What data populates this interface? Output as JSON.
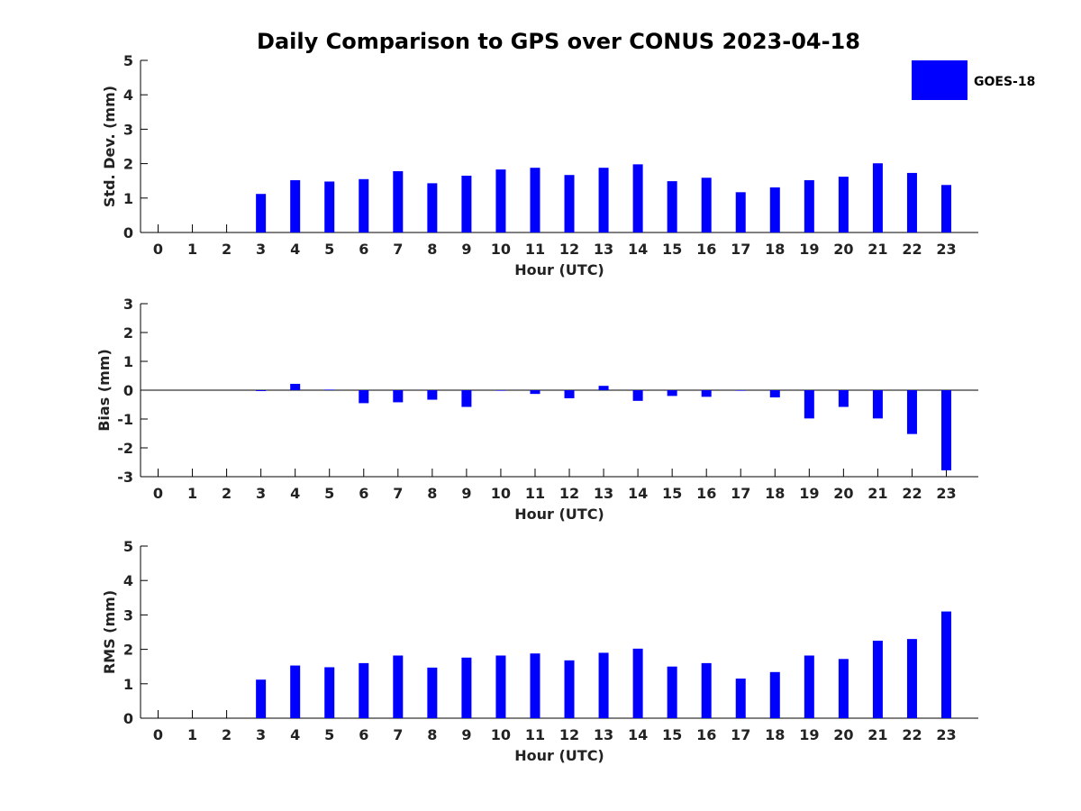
{
  "title": "Daily Comparison to GPS over CONUS 2023-04-18",
  "legend": {
    "label": "GOES-18",
    "color": "#0000ff",
    "placement": "top-right"
  },
  "chart_data": [
    {
      "type": "bar",
      "xlabel": "Hour (UTC)",
      "ylabel": "Std. Dev. (mm)",
      "ylim": [
        0,
        5
      ],
      "yticks": [
        0,
        1,
        2,
        3,
        4,
        5
      ],
      "categories": [
        "0",
        "1",
        "2",
        "3",
        "4",
        "5",
        "6",
        "7",
        "8",
        "9",
        "10",
        "11",
        "12",
        "13",
        "14",
        "15",
        "16",
        "17",
        "18",
        "19",
        "20",
        "21",
        "22",
        "23"
      ],
      "series": [
        {
          "name": "GOES-18",
          "values": [
            0,
            0,
            0,
            1.12,
            1.52,
            1.48,
            1.55,
            1.78,
            1.43,
            1.65,
            1.83,
            1.88,
            1.67,
            1.88,
            1.98,
            1.49,
            1.59,
            1.17,
            1.31,
            1.52,
            1.62,
            2.01,
            1.73,
            1.38
          ]
        }
      ]
    },
    {
      "type": "bar",
      "xlabel": "Hour (UTC)",
      "ylabel": "Bias (mm)",
      "ylim": [
        -3,
        3
      ],
      "yticks": [
        -3,
        -2,
        -1,
        0,
        1,
        2,
        3
      ],
      "categories": [
        "0",
        "1",
        "2",
        "3",
        "4",
        "5",
        "6",
        "7",
        "8",
        "9",
        "10",
        "11",
        "12",
        "13",
        "14",
        "15",
        "16",
        "17",
        "18",
        "19",
        "20",
        "21",
        "22",
        "23"
      ],
      "series": [
        {
          "name": "GOES-18",
          "values": [
            0,
            0,
            0,
            -0.03,
            0.22,
            0.02,
            -0.45,
            -0.42,
            -0.33,
            -0.58,
            -0.02,
            -0.13,
            -0.28,
            0.15,
            -0.37,
            -0.2,
            -0.23,
            -0.02,
            -0.25,
            -0.98,
            -0.58,
            -0.98,
            -1.52,
            -2.78
          ]
        }
      ]
    },
    {
      "type": "bar",
      "xlabel": "Hour (UTC)",
      "ylabel": "RMS (mm)",
      "ylim": [
        0,
        5
      ],
      "yticks": [
        0,
        1,
        2,
        3,
        4,
        5
      ],
      "categories": [
        "0",
        "1",
        "2",
        "3",
        "4",
        "5",
        "6",
        "7",
        "8",
        "9",
        "10",
        "11",
        "12",
        "13",
        "14",
        "15",
        "16",
        "17",
        "18",
        "19",
        "20",
        "21",
        "22",
        "23"
      ],
      "series": [
        {
          "name": "GOES-18",
          "values": [
            0,
            0,
            0,
            1.12,
            1.53,
            1.48,
            1.6,
            1.82,
            1.47,
            1.76,
            1.82,
            1.88,
            1.68,
            1.9,
            2.02,
            1.5,
            1.6,
            1.15,
            1.34,
            1.82,
            1.72,
            2.25,
            2.3,
            3.1
          ]
        }
      ]
    }
  ]
}
